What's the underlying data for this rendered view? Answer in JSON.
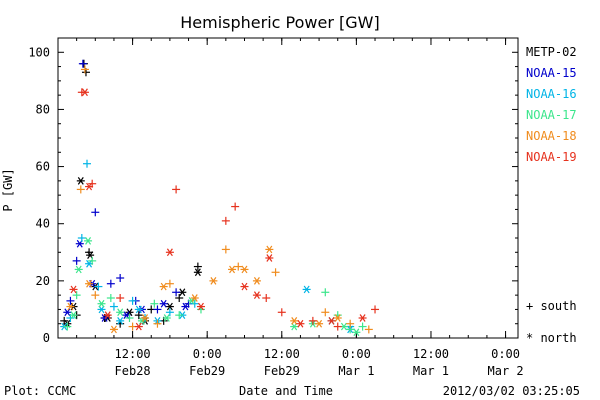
{
  "chart_data": {
    "type": "scatter",
    "title": "Hemispheric Power [GW]",
    "xlabel": "Date and Time",
    "ylabel": "P [GW]",
    "ylim": [
      0,
      105
    ],
    "yticks": [
      0,
      20,
      40,
      60,
      80,
      100
    ],
    "xlim": [
      "2012-02-28 00:00",
      "2012-03-02 02:00"
    ],
    "xtick_times": [
      "2012-02-28 12:00",
      "2012-02-29 00:00",
      "2012-02-29 12:00",
      "2012-03-01 00:00",
      "2012-03-01 12:00",
      "2012-03-02 00:00"
    ],
    "xtick_labels": [
      {
        "time": "12:00",
        "date": "Feb28"
      },
      {
        "time": "0:00",
        "date": "Feb29"
      },
      {
        "time": "12:00",
        "date": "Feb29"
      },
      {
        "time": "0:00",
        "date": "Mar 1"
      },
      {
        "time": "12:00",
        "date": "Mar 1"
      },
      {
        "time": "0:00",
        "date": "Mar 2"
      }
    ],
    "legend_position": "right",
    "marker_legend": [
      {
        "symbol": "+",
        "label": "south"
      },
      {
        "symbol": "*",
        "label": "north"
      }
    ],
    "series": [
      {
        "name": "METP-02",
        "color": "#000000",
        "south": [
          [
            "2012-02-28 01:00",
            6
          ],
          [
            "2012-02-28 03:00",
            8
          ],
          [
            "2012-02-28 04:10",
            96
          ],
          [
            "2012-02-28 04:30",
            93
          ],
          [
            "2012-02-28 05:00",
            30
          ],
          [
            "2012-02-28 07:30",
            7
          ],
          [
            "2012-02-28 10:00",
            5
          ],
          [
            "2012-02-28 13:00",
            8
          ],
          [
            "2012-02-28 15:00",
            10
          ],
          [
            "2012-02-28 17:00",
            6
          ],
          [
            "2012-02-28 19:30",
            14
          ],
          [
            "2012-02-28 22:30",
            25
          ]
        ],
        "north": [
          [
            "2012-02-28 01:30",
            5
          ],
          [
            "2012-02-28 02:30",
            11
          ],
          [
            "2012-02-28 03:40",
            55
          ],
          [
            "2012-02-28 05:10",
            29
          ],
          [
            "2012-02-28 06:00",
            18
          ],
          [
            "2012-02-28 08:00",
            7
          ],
          [
            "2012-02-28 11:30",
            9
          ],
          [
            "2012-02-28 14:00",
            6
          ],
          [
            "2012-02-28 18:00",
            11
          ],
          [
            "2012-02-28 20:00",
            16
          ],
          [
            "2012-02-28 22:30",
            23
          ]
        ]
      },
      {
        "name": "NOAA-15",
        "color": "#0000cc",
        "south": [
          [
            "2012-02-28 02:00",
            13
          ],
          [
            "2012-02-28 03:00",
            27
          ],
          [
            "2012-02-28 04:00",
            96
          ],
          [
            "2012-02-28 06:00",
            44
          ],
          [
            "2012-02-28 08:30",
            19
          ],
          [
            "2012-02-28 10:00",
            21
          ],
          [
            "2012-02-28 12:30",
            13
          ],
          [
            "2012-02-28 16:00",
            10
          ],
          [
            "2012-02-28 19:00",
            16
          ],
          [
            "2012-02-28 21:00",
            12
          ]
        ],
        "north": [
          [
            "2012-02-28 01:30",
            9
          ],
          [
            "2012-02-28 03:30",
            33
          ],
          [
            "2012-02-28 05:30",
            19
          ],
          [
            "2012-02-28 07:30",
            7
          ],
          [
            "2012-02-28 11:00",
            8
          ],
          [
            "2012-02-28 13:30",
            10
          ],
          [
            "2012-02-28 17:00",
            12
          ],
          [
            "2012-02-28 20:30",
            11
          ]
        ]
      },
      {
        "name": "NOAA-16",
        "color": "#00b4e6",
        "south": [
          [
            "2012-02-28 02:00",
            7
          ],
          [
            "2012-02-28 03:50",
            35
          ],
          [
            "2012-02-28 04:40",
            61
          ],
          [
            "2012-02-28 06:30",
            18
          ],
          [
            "2012-02-28 09:00",
            11
          ],
          [
            "2012-02-28 12:00",
            13
          ],
          [
            "2012-02-28 14:00",
            7
          ],
          [
            "2012-02-28 18:00",
            9
          ],
          [
            "2012-02-28 22:00",
            12
          ],
          [
            "2012-02-29 23:00",
            4
          ]
        ],
        "north": [
          [
            "2012-02-28 01:00",
            4
          ],
          [
            "2012-02-28 05:00",
            26
          ],
          [
            "2012-02-28 07:00",
            10
          ],
          [
            "2012-02-28 10:00",
            6
          ],
          [
            "2012-02-28 13:00",
            10
          ],
          [
            "2012-02-28 16:00",
            6
          ],
          [
            "2012-02-28 20:00",
            8
          ],
          [
            "2012-02-29 16:00",
            17
          ],
          [
            "2012-02-29 20:00",
            6
          ],
          [
            "2012-02-29 23:00",
            3
          ]
        ]
      },
      {
        "name": "NOAA-17",
        "color": "#3ce68c",
        "south": [
          [
            "2012-02-28 01:30",
            4
          ],
          [
            "2012-02-28 03:00",
            15
          ],
          [
            "2012-02-28 05:30",
            27
          ],
          [
            "2012-02-28 08:30",
            14
          ],
          [
            "2012-02-28 11:30",
            7
          ],
          [
            "2012-02-28 15:30",
            12
          ],
          [
            "2012-02-28 19:30",
            8
          ],
          [
            "2012-02-28 23:00",
            10
          ],
          [
            "2012-02-29 19:00",
            16
          ],
          [
            "2012-02-29 21:00",
            8
          ],
          [
            "2012-02-29 23:00",
            3
          ],
          [
            "2012-03-01 01:00",
            4
          ]
        ],
        "north": [
          [
            "2012-02-28 02:30",
            8
          ],
          [
            "2012-02-28 03:20",
            24
          ],
          [
            "2012-02-28 04:50",
            34
          ],
          [
            "2012-02-28 07:00",
            12
          ],
          [
            "2012-02-28 10:00",
            9
          ],
          [
            "2012-02-28 13:30",
            6
          ],
          [
            "2012-02-28 17:30",
            7
          ],
          [
            "2012-02-28 21:30",
            13
          ],
          [
            "2012-02-29 14:00",
            4
          ],
          [
            "2012-02-29 17:00",
            5
          ],
          [
            "2012-02-29 22:00",
            4
          ],
          [
            "2012-03-01 00:00",
            2
          ]
        ]
      },
      {
        "name": "NOAA-18",
        "color": "#f08c1e",
        "south": [
          [
            "2012-02-28 03:40",
            52
          ],
          [
            "2012-02-28 04:20",
            94
          ],
          [
            "2012-02-28 06:00",
            15
          ],
          [
            "2012-02-28 12:00",
            4
          ],
          [
            "2012-02-28 16:00",
            5
          ],
          [
            "2012-02-28 18:00",
            19
          ],
          [
            "2012-02-29 03:00",
            31
          ],
          [
            "2012-02-29 05:00",
            25
          ],
          [
            "2012-02-29 11:00",
            23
          ],
          [
            "2012-02-29 19:00",
            9
          ],
          [
            "2012-02-29 23:00",
            5
          ],
          [
            "2012-03-01 02:00",
            3
          ]
        ],
        "north": [
          [
            "2012-02-28 02:00",
            11
          ],
          [
            "2012-02-28 05:00",
            19
          ],
          [
            "2012-02-28 09:00",
            3
          ],
          [
            "2012-02-28 14:00",
            7
          ],
          [
            "2012-02-28 17:00",
            18
          ],
          [
            "2012-02-28 22:00",
            14
          ],
          [
            "2012-02-29 01:00",
            20
          ],
          [
            "2012-02-29 04:00",
            24
          ],
          [
            "2012-02-29 06:00",
            24
          ],
          [
            "2012-02-29 08:00",
            20
          ],
          [
            "2012-02-29 10:00",
            31
          ],
          [
            "2012-02-29 14:00",
            6
          ],
          [
            "2012-02-29 18:00",
            5
          ],
          [
            "2012-02-29 21:00",
            7
          ]
        ]
      },
      {
        "name": "NOAA-19",
        "color": "#e6321e",
        "south": [
          [
            "2012-02-28 03:50",
            86
          ],
          [
            "2012-02-28 05:30",
            54
          ],
          [
            "2012-02-28 10:00",
            14
          ],
          [
            "2012-02-28 19:00",
            52
          ],
          [
            "2012-02-29 03:00",
            41
          ],
          [
            "2012-02-29 04:30",
            46
          ],
          [
            "2012-02-29 09:30",
            14
          ],
          [
            "2012-02-29 12:00",
            9
          ],
          [
            "2012-02-29 17:00",
            6
          ],
          [
            "2012-02-29 21:00",
            4
          ],
          [
            "2012-03-01 03:00",
            10
          ]
        ],
        "north": [
          [
            "2012-02-28 02:30",
            17
          ],
          [
            "2012-02-28 04:20",
            86
          ],
          [
            "2012-02-28 05:00",
            53
          ],
          [
            "2012-02-28 08:00",
            8
          ],
          [
            "2012-02-28 13:00",
            4
          ],
          [
            "2012-02-28 18:00",
            30
          ],
          [
            "2012-02-28 23:00",
            11
          ],
          [
            "2012-02-29 06:00",
            18
          ],
          [
            "2012-02-29 08:00",
            15
          ],
          [
            "2012-02-29 10:00",
            28
          ],
          [
            "2012-02-29 15:00",
            5
          ],
          [
            "2012-02-29 20:00",
            6
          ],
          [
            "2012-03-01 01:00",
            7
          ]
        ]
      }
    ]
  },
  "footer": {
    "left": "Plot: CCMC",
    "right": "2012/03/02 03:25:05"
  }
}
